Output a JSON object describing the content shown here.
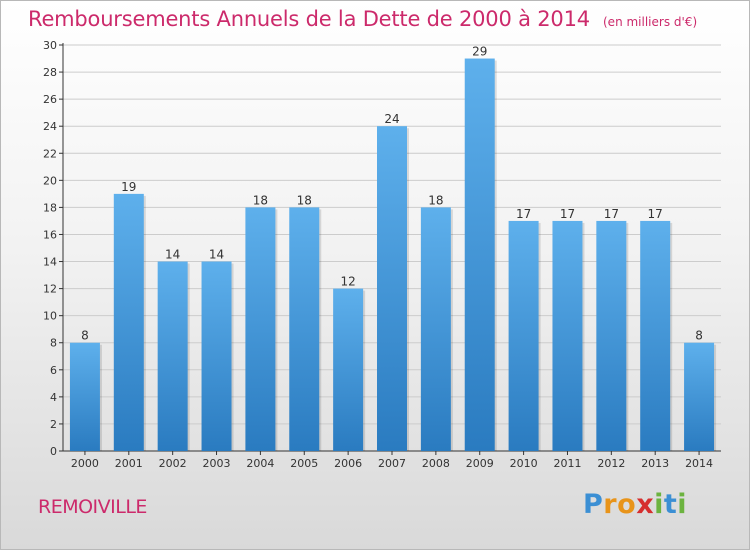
{
  "header": {
    "title": "Remboursements Annuels de la Dette de 2000 à 2014",
    "subtitle": "(en milliers d'€)"
  },
  "commune": "REMOIVILLE",
  "logo": {
    "text": "Proxiti",
    "letters": [
      {
        "char": "P",
        "color": "#3b8fd4"
      },
      {
        "char": "r",
        "color": "#e8941a"
      },
      {
        "char": "o",
        "color": "#e8941a"
      },
      {
        "char": "x",
        "color": "#d62f2f"
      },
      {
        "char": "i",
        "color": "#6cb33f"
      },
      {
        "char": "t",
        "color": "#3b8fd4"
      },
      {
        "char": "i",
        "color": "#6cb33f"
      }
    ]
  },
  "colors": {
    "bar_top": "#5eb0ec",
    "bar_bottom": "#2a7bc0",
    "title": "#cc2a6b",
    "axis": "#333333",
    "grid": "#cccccc"
  },
  "chart_data": {
    "type": "bar",
    "categories": [
      "2000",
      "2001",
      "2002",
      "2003",
      "2004",
      "2005",
      "2006",
      "2007",
      "2008",
      "2009",
      "2010",
      "2011",
      "2012",
      "2013",
      "2014"
    ],
    "values": [
      8,
      19,
      14,
      14,
      18,
      18,
      12,
      24,
      18,
      29,
      17,
      17,
      17,
      17,
      8
    ],
    "data_labels": [
      "8",
      "19",
      "14",
      "14",
      "18",
      "18",
      "12",
      "24",
      "18",
      "29",
      "17",
      "17",
      "17",
      "17",
      "8"
    ],
    "y_ticks": [
      0,
      2,
      4,
      6,
      8,
      10,
      12,
      14,
      16,
      18,
      20,
      22,
      24,
      26,
      28,
      30
    ],
    "ylim": [
      0,
      30
    ],
    "grid": true,
    "legend": "none"
  }
}
